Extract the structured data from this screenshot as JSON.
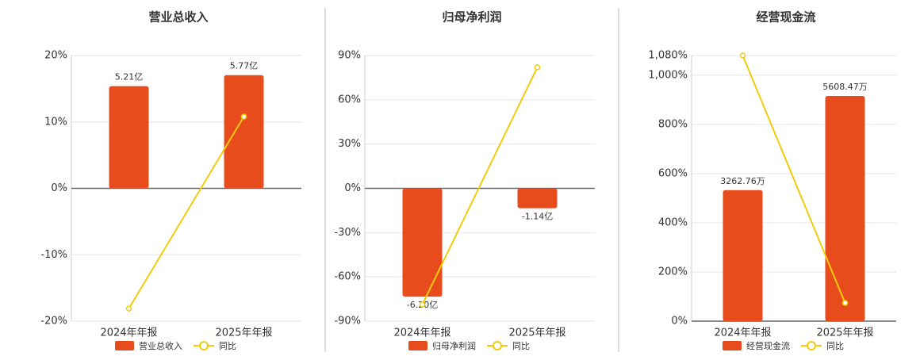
{
  "chart_data": [
    {
      "type": "combo",
      "title": "营业总收入",
      "categories": [
        "2024年年报",
        "2025年年报"
      ],
      "ylim": [
        -20,
        20
      ],
      "yticks": [
        {
          "value": -20,
          "label": "-20%"
        },
        {
          "value": -10,
          "label": "-10%"
        },
        {
          "value": 0,
          "label": "0%"
        },
        {
          "value": 10,
          "label": "10%"
        },
        {
          "value": 20,
          "label": "20%"
        }
      ],
      "y2lim": [
        -6.77,
        6.77
      ],
      "grid": true,
      "series": [
        {
          "name": "营业总收入",
          "type": "bar",
          "axis": "y2",
          "color": "#e84c1c",
          "values": [
            5.21,
            5.77
          ],
          "value_labels": [
            "5.21亿",
            "5.77亿"
          ]
        },
        {
          "name": "同比",
          "type": "line",
          "color": "#f2cc0c",
          "values": [
            -18.1,
            10.8
          ]
        }
      ]
    },
    {
      "type": "combo",
      "title": "归母净利润",
      "categories": [
        "2024年年报",
        "2025年年报"
      ],
      "ylim": [
        -90,
        90
      ],
      "yticks": [
        {
          "value": -90,
          "label": "-90%"
        },
        {
          "value": -60,
          "label": "-60%"
        },
        {
          "value": -30,
          "label": "-30%"
        },
        {
          "value": 0,
          "label": "0%"
        },
        {
          "value": 30,
          "label": "30%"
        },
        {
          "value": 60,
          "label": "60%"
        },
        {
          "value": 90,
          "label": "90%"
        }
      ],
      "y2lim": [
        -7.6,
        7.6
      ],
      "grid": true,
      "series": [
        {
          "name": "归母净利润",
          "type": "bar",
          "axis": "y2",
          "color": "#e84c1c",
          "values": [
            -6.2,
            -1.14
          ],
          "value_labels": [
            "-6.20亿",
            "-1.14亿"
          ]
        },
        {
          "name": "同比",
          "type": "line",
          "color": "#f2cc0c",
          "values": [
            -78.8,
            82
          ]
        }
      ]
    },
    {
      "type": "combo",
      "title": "经营现金流",
      "categories": [
        "2024年年报",
        "2025年年报"
      ],
      "ylim": [
        0,
        1080
      ],
      "yticks": [
        {
          "value": 0,
          "label": "0%"
        },
        {
          "value": 200,
          "label": "200%"
        },
        {
          "value": 400,
          "label": "400%"
        },
        {
          "value": 600,
          "label": "600%"
        },
        {
          "value": 800,
          "label": "800%"
        },
        {
          "value": 1000,
          "label": "1,000%"
        },
        {
          "value": 1080,
          "label": "1,080%"
        }
      ],
      "y2lim": [
        0,
        6615
      ],
      "grid": true,
      "series": [
        {
          "name": "经营现金流",
          "type": "bar",
          "axis": "y2",
          "color": "#e84c1c",
          "values": [
            3262.76,
            5608.47
          ],
          "value_labels": [
            "3262.76万",
            "5608.47万"
          ]
        },
        {
          "name": "同比",
          "type": "line",
          "color": "#f2cc0c",
          "values": [
            1080,
            74
          ]
        }
      ]
    }
  ]
}
